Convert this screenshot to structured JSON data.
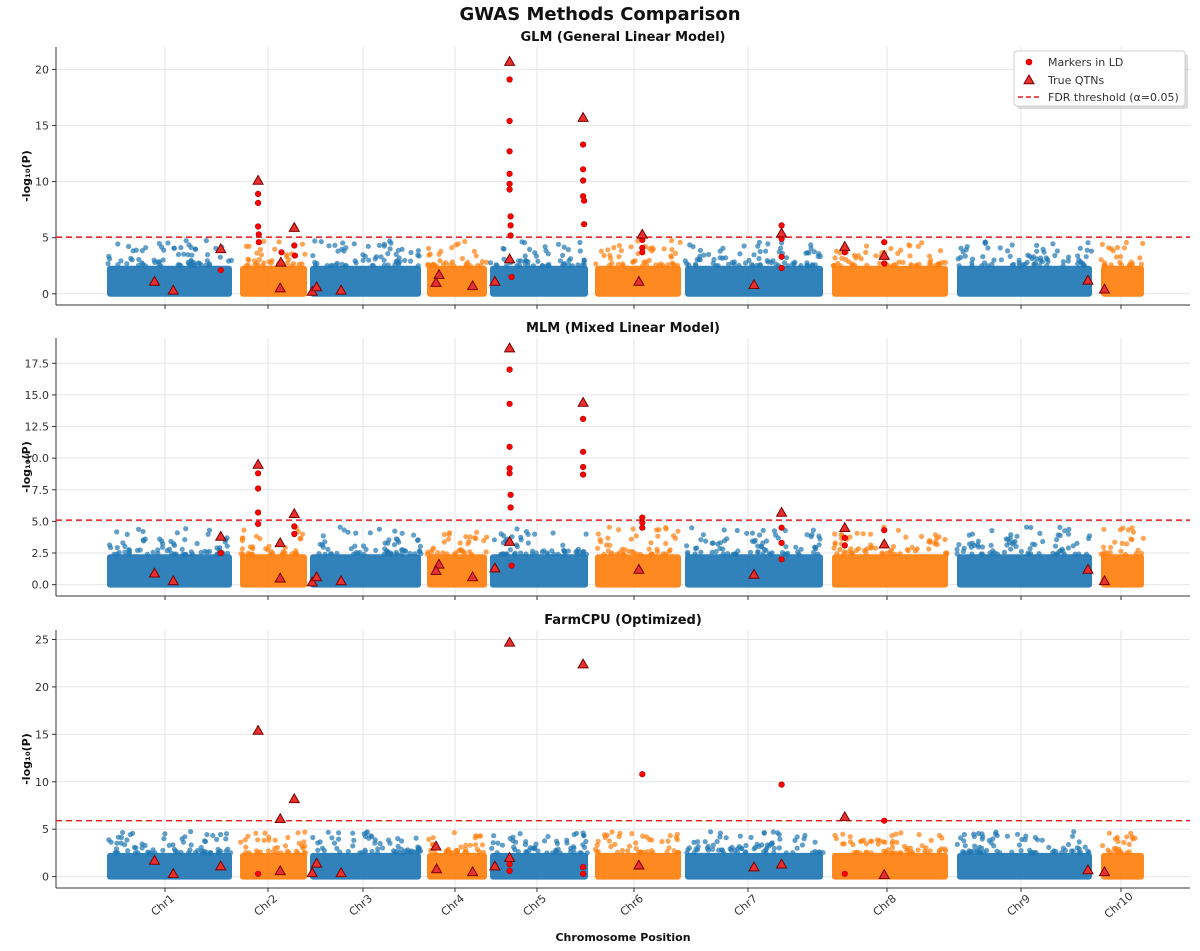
{
  "figure": {
    "title": "GWAS Methods Comparison"
  },
  "colors": {
    "chr_odd": "#1f77b4",
    "chr_even": "#ff7f0e",
    "ld": "#ff0000",
    "qtn": "#e8312f",
    "threshold": "#e31a1c",
    "grid": "#e6e6e6"
  },
  "chart_data": [
    {
      "type": "scatter",
      "title": "GLM (General Linear Model)",
      "ylabel": "-log₁₀(P)",
      "xlabel": "",
      "ylim": [
        -1,
        22
      ],
      "yticks": [
        0,
        5,
        10,
        15,
        20
      ],
      "ytick_labels": [
        "0",
        "5",
        "10",
        "15",
        "20"
      ],
      "grid": true,
      "legend": {
        "placement": "top-right",
        "entries": [
          "Markers in LD",
          "True QTNs",
          "FDR threshold (α=0.05)"
        ]
      },
      "threshold": 5.05,
      "background_max": 2.5,
      "qtns": [
        {
          "chr": 1,
          "pos": 0.38,
          "y": 1.1
        },
        {
          "chr": 1,
          "pos": 0.53,
          "y": 0.3
        },
        {
          "chr": 1,
          "pos": 0.91,
          "y": 4.0
        },
        {
          "chr": 2,
          "pos": 0.27,
          "y": 10.1
        },
        {
          "chr": 2,
          "pos": 0.61,
          "y": 2.8
        },
        {
          "chr": 2,
          "pos": 0.6,
          "y": 0.5
        },
        {
          "chr": 2,
          "pos": 0.81,
          "y": 5.9
        },
        {
          "chr": 3,
          "pos": 0.02,
          "y": 0.2
        },
        {
          "chr": 3,
          "pos": 0.06,
          "y": 0.6
        },
        {
          "chr": 3,
          "pos": 0.28,
          "y": 0.3
        },
        {
          "chr": 4,
          "pos": 0.2,
          "y": 1.7
        },
        {
          "chr": 4,
          "pos": 0.15,
          "y": 1.0
        },
        {
          "chr": 4,
          "pos": 0.76,
          "y": 0.7
        },
        {
          "chr": 5,
          "pos": 0.05,
          "y": 1.1
        },
        {
          "chr": 5,
          "pos": 0.2,
          "y": 20.7
        },
        {
          "chr": 5,
          "pos": 0.2,
          "y": 3.1
        },
        {
          "chr": 5,
          "pos": 0.95,
          "y": 15.7
        },
        {
          "chr": 6,
          "pos": 0.55,
          "y": 5.3
        },
        {
          "chr": 6,
          "pos": 0.51,
          "y": 1.1
        },
        {
          "chr": 7,
          "pos": 0.5,
          "y": 0.8
        },
        {
          "chr": 7,
          "pos": 0.7,
          "y": 5.4
        },
        {
          "chr": 8,
          "pos": 0.11,
          "y": 4.2
        },
        {
          "chr": 8,
          "pos": 0.45,
          "y": 3.4
        },
        {
          "chr": 9,
          "pos": 0.97,
          "y": 1.2
        },
        {
          "chr": 10,
          "pos": 0.08,
          "y": 0.4
        }
      ],
      "ld": [
        {
          "chr": 1,
          "pos": 0.91,
          "y": 2.1
        },
        {
          "chr": 2,
          "pos": 0.27,
          "y": 8.9
        },
        {
          "chr": 2,
          "pos": 0.27,
          "y": 8.1
        },
        {
          "chr": 2,
          "pos": 0.27,
          "y": 6.0
        },
        {
          "chr": 2,
          "pos": 0.28,
          "y": 5.3
        },
        {
          "chr": 2,
          "pos": 0.28,
          "y": 4.6
        },
        {
          "chr": 2,
          "pos": 0.81,
          "y": 4.3
        },
        {
          "chr": 2,
          "pos": 0.82,
          "y": 3.4
        },
        {
          "chr": 2,
          "pos": 0.62,
          "y": 3.7
        },
        {
          "chr": 5,
          "pos": 0.2,
          "y": 19.1
        },
        {
          "chr": 5,
          "pos": 0.2,
          "y": 15.4
        },
        {
          "chr": 5,
          "pos": 0.2,
          "y": 12.7
        },
        {
          "chr": 5,
          "pos": 0.2,
          "y": 10.7
        },
        {
          "chr": 5,
          "pos": 0.2,
          "y": 9.8
        },
        {
          "chr": 5,
          "pos": 0.2,
          "y": 9.3
        },
        {
          "chr": 5,
          "pos": 0.21,
          "y": 6.9
        },
        {
          "chr": 5,
          "pos": 0.21,
          "y": 6.1
        },
        {
          "chr": 5,
          "pos": 0.21,
          "y": 5.2
        },
        {
          "chr": 5,
          "pos": 0.22,
          "y": 1.5
        },
        {
          "chr": 5,
          "pos": 0.95,
          "y": 13.3
        },
        {
          "chr": 5,
          "pos": 0.95,
          "y": 11.1
        },
        {
          "chr": 5,
          "pos": 0.95,
          "y": 10.1
        },
        {
          "chr": 5,
          "pos": 0.95,
          "y": 8.7
        },
        {
          "chr": 5,
          "pos": 0.96,
          "y": 8.3
        },
        {
          "chr": 5,
          "pos": 0.96,
          "y": 6.2
        },
        {
          "chr": 6,
          "pos": 0.55,
          "y": 4.8
        },
        {
          "chr": 6,
          "pos": 0.55,
          "y": 4.1
        },
        {
          "chr": 6,
          "pos": 0.55,
          "y": 3.7
        },
        {
          "chr": 7,
          "pos": 0.7,
          "y": 6.1
        },
        {
          "chr": 7,
          "pos": 0.7,
          "y": 4.9
        },
        {
          "chr": 7,
          "pos": 0.7,
          "y": 3.3
        },
        {
          "chr": 7,
          "pos": 0.7,
          "y": 2.3
        },
        {
          "chr": 8,
          "pos": 0.11,
          "y": 3.7
        },
        {
          "chr": 8,
          "pos": 0.45,
          "y": 4.6
        },
        {
          "chr": 8,
          "pos": 0.45,
          "y": 2.7
        }
      ]
    },
    {
      "type": "scatter",
      "title": "MLM (Mixed Linear Model)",
      "ylabel": "-log₁₀(P)",
      "xlabel": "",
      "ylim": [
        -0.9,
        19.5
      ],
      "yticks": [
        0,
        2.5,
        5,
        7.5,
        10,
        12.5,
        15,
        17.5
      ],
      "ytick_labels": [
        "0.0",
        "2.5",
        "5.0",
        "7.5",
        "10.0",
        "12.5",
        "15.0",
        "17.5"
      ],
      "grid": true,
      "threshold": 5.1,
      "background_max": 2.4,
      "qtns": [
        {
          "chr": 1,
          "pos": 0.38,
          "y": 0.9
        },
        {
          "chr": 1,
          "pos": 0.53,
          "y": 0.3
        },
        {
          "chr": 1,
          "pos": 0.91,
          "y": 3.8
        },
        {
          "chr": 2,
          "pos": 0.27,
          "y": 9.5
        },
        {
          "chr": 2,
          "pos": 0.6,
          "y": 3.3
        },
        {
          "chr": 2,
          "pos": 0.6,
          "y": 0.5
        },
        {
          "chr": 2,
          "pos": 0.81,
          "y": 5.6
        },
        {
          "chr": 3,
          "pos": 0.02,
          "y": 0.2
        },
        {
          "chr": 3,
          "pos": 0.06,
          "y": 0.6
        },
        {
          "chr": 3,
          "pos": 0.28,
          "y": 0.3
        },
        {
          "chr": 4,
          "pos": 0.2,
          "y": 1.6
        },
        {
          "chr": 4,
          "pos": 0.15,
          "y": 1.1
        },
        {
          "chr": 4,
          "pos": 0.76,
          "y": 0.6
        },
        {
          "chr": 5,
          "pos": 0.05,
          "y": 1.3
        },
        {
          "chr": 5,
          "pos": 0.2,
          "y": 18.7
        },
        {
          "chr": 5,
          "pos": 0.2,
          "y": 3.4
        },
        {
          "chr": 5,
          "pos": 0.95,
          "y": 14.4
        },
        {
          "chr": 6,
          "pos": 0.51,
          "y": 1.2
        },
        {
          "chr": 7,
          "pos": 0.5,
          "y": 0.8
        },
        {
          "chr": 7,
          "pos": 0.7,
          "y": 5.7
        },
        {
          "chr": 8,
          "pos": 0.11,
          "y": 4.5
        },
        {
          "chr": 8,
          "pos": 0.45,
          "y": 3.2
        },
        {
          "chr": 9,
          "pos": 0.97,
          "y": 1.2
        },
        {
          "chr": 10,
          "pos": 0.08,
          "y": 0.3
        }
      ],
      "ld": [
        {
          "chr": 1,
          "pos": 0.91,
          "y": 2.5
        },
        {
          "chr": 2,
          "pos": 0.27,
          "y": 8.8
        },
        {
          "chr": 2,
          "pos": 0.27,
          "y": 7.6
        },
        {
          "chr": 2,
          "pos": 0.27,
          "y": 5.7
        },
        {
          "chr": 2,
          "pos": 0.27,
          "y": 4.8
        },
        {
          "chr": 2,
          "pos": 0.81,
          "y": 4.6
        },
        {
          "chr": 2,
          "pos": 0.81,
          "y": 4.0
        },
        {
          "chr": 5,
          "pos": 0.2,
          "y": 17.0
        },
        {
          "chr": 5,
          "pos": 0.2,
          "y": 14.3
        },
        {
          "chr": 5,
          "pos": 0.2,
          "y": 10.9
        },
        {
          "chr": 5,
          "pos": 0.2,
          "y": 9.2
        },
        {
          "chr": 5,
          "pos": 0.2,
          "y": 8.8
        },
        {
          "chr": 5,
          "pos": 0.21,
          "y": 7.1
        },
        {
          "chr": 5,
          "pos": 0.21,
          "y": 6.1
        },
        {
          "chr": 5,
          "pos": 0.22,
          "y": 1.5
        },
        {
          "chr": 5,
          "pos": 0.95,
          "y": 13.1
        },
        {
          "chr": 5,
          "pos": 0.95,
          "y": 10.5
        },
        {
          "chr": 5,
          "pos": 0.95,
          "y": 9.3
        },
        {
          "chr": 5,
          "pos": 0.95,
          "y": 8.7
        },
        {
          "chr": 6,
          "pos": 0.55,
          "y": 5.3
        },
        {
          "chr": 6,
          "pos": 0.55,
          "y": 4.9
        },
        {
          "chr": 6,
          "pos": 0.55,
          "y": 4.5
        },
        {
          "chr": 7,
          "pos": 0.7,
          "y": 4.5
        },
        {
          "chr": 7,
          "pos": 0.7,
          "y": 3.3
        },
        {
          "chr": 7,
          "pos": 0.7,
          "y": 2.0
        },
        {
          "chr": 8,
          "pos": 0.11,
          "y": 3.7
        },
        {
          "chr": 8,
          "pos": 0.11,
          "y": 3.1
        },
        {
          "chr": 8,
          "pos": 0.45,
          "y": 4.3
        }
      ]
    },
    {
      "type": "scatter",
      "title": "FarmCPU (Optimized)",
      "ylabel": "-log₁₀(P)",
      "xlabel": "Chromosome Position",
      "ylim": [
        -1.2,
        26
      ],
      "yticks": [
        0,
        5,
        10,
        15,
        20,
        25
      ],
      "ytick_labels": [
        "0",
        "5",
        "10",
        "15",
        "20",
        "25"
      ],
      "grid": true,
      "threshold": 5.9,
      "background_max": 2.5,
      "categories": [
        "Chr1",
        "Chr2",
        "Chr3",
        "Chr4",
        "Chr5",
        "Chr6",
        "Chr7",
        "Chr8",
        "Chr9",
        "Chr10"
      ],
      "qtns": [
        {
          "chr": 1,
          "pos": 0.38,
          "y": 1.7
        },
        {
          "chr": 1,
          "pos": 0.53,
          "y": 0.3
        },
        {
          "chr": 1,
          "pos": 0.91,
          "y": 1.1
        },
        {
          "chr": 2,
          "pos": 0.27,
          "y": 15.4
        },
        {
          "chr": 2,
          "pos": 0.6,
          "y": 6.1
        },
        {
          "chr": 2,
          "pos": 0.6,
          "y": 0.6
        },
        {
          "chr": 2,
          "pos": 0.81,
          "y": 8.2
        },
        {
          "chr": 3,
          "pos": 0.02,
          "y": 0.4
        },
        {
          "chr": 3,
          "pos": 0.06,
          "y": 1.4
        },
        {
          "chr": 3,
          "pos": 0.28,
          "y": 0.4
        },
        {
          "chr": 4,
          "pos": 0.15,
          "y": 3.2
        },
        {
          "chr": 4,
          "pos": 0.16,
          "y": 0.8
        },
        {
          "chr": 4,
          "pos": 0.76,
          "y": 0.5
        },
        {
          "chr": 5,
          "pos": 0.05,
          "y": 1.1
        },
        {
          "chr": 5,
          "pos": 0.2,
          "y": 24.7
        },
        {
          "chr": 5,
          "pos": 0.2,
          "y": 2.0
        },
        {
          "chr": 5,
          "pos": 0.95,
          "y": 22.4
        },
        {
          "chr": 6,
          "pos": 0.51,
          "y": 1.2
        },
        {
          "chr": 7,
          "pos": 0.5,
          "y": 1.0
        },
        {
          "chr": 7,
          "pos": 0.7,
          "y": 1.3
        },
        {
          "chr": 8,
          "pos": 0.11,
          "y": 6.3
        },
        {
          "chr": 8,
          "pos": 0.45,
          "y": 0.2
        },
        {
          "chr": 9,
          "pos": 0.97,
          "y": 0.7
        },
        {
          "chr": 10,
          "pos": 0.08,
          "y": 0.5
        }
      ],
      "ld": [
        {
          "chr": 2,
          "pos": 0.27,
          "y": 0.3
        },
        {
          "chr": 5,
          "pos": 0.2,
          "y": 1.3
        },
        {
          "chr": 5,
          "pos": 0.2,
          "y": 0.6
        },
        {
          "chr": 5,
          "pos": 0.95,
          "y": 1.0
        },
        {
          "chr": 5,
          "pos": 0.95,
          "y": 0.3
        },
        {
          "chr": 6,
          "pos": 0.55,
          "y": 10.8
        },
        {
          "chr": 7,
          "pos": 0.7,
          "y": 9.7
        },
        {
          "chr": 8,
          "pos": 0.45,
          "y": 5.9
        },
        {
          "chr": 8,
          "pos": 0.11,
          "y": 0.3
        }
      ]
    }
  ]
}
